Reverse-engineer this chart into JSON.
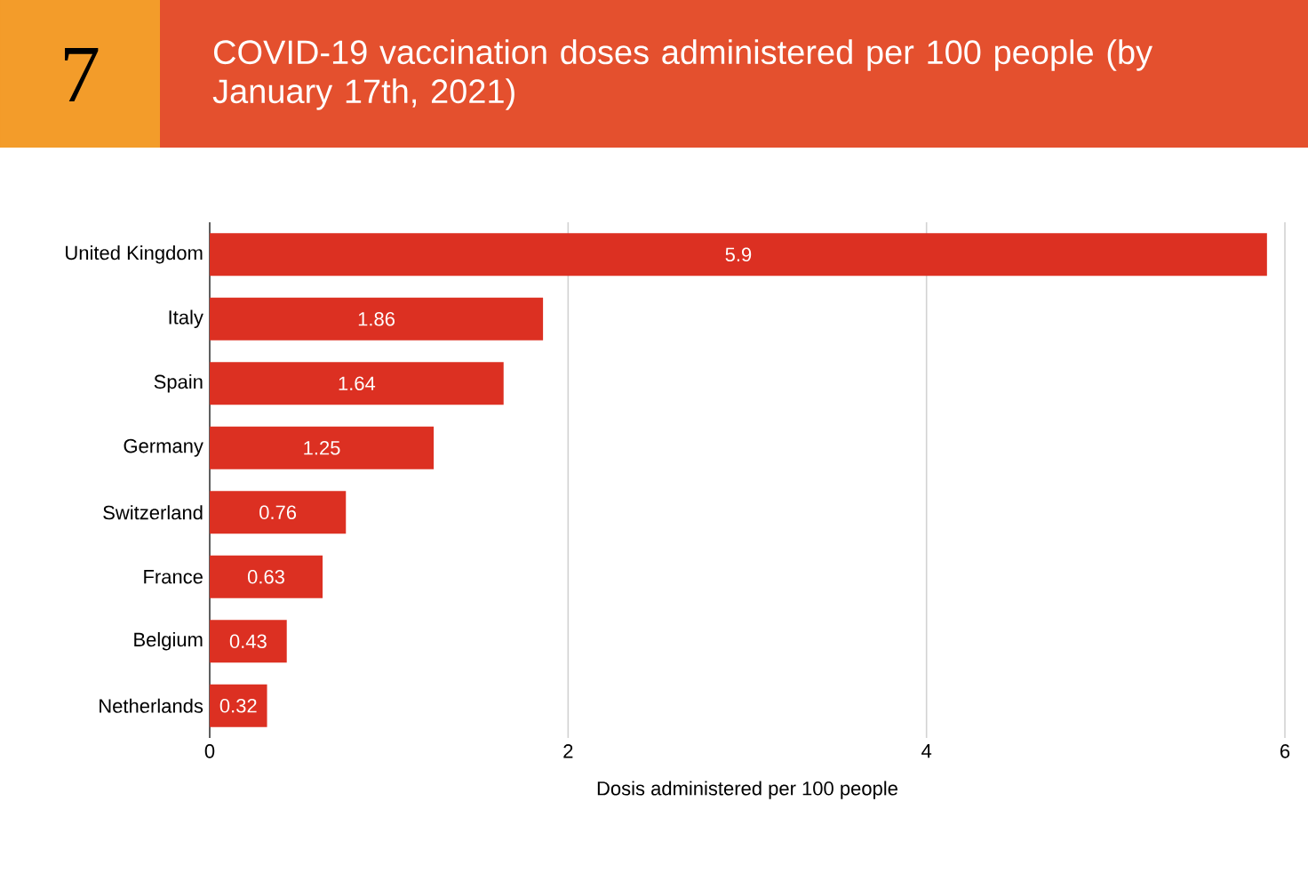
{
  "chart_data": {
    "type": "bar",
    "orientation": "horizontal",
    "title": "COVID-19 vaccination doses administered per 100 people (by January 17th, 2021)",
    "annotations": [
      "7"
    ],
    "xlabel": "Dosis administered per 100 people",
    "categories": [
      "United Kingdom",
      "Italy",
      "Spain",
      "Germany",
      "Switzerland",
      "France",
      "Belgium",
      "Netherlands"
    ],
    "values": [
      5.9,
      1.86,
      1.64,
      1.25,
      0.76,
      0.63,
      0.43,
      0.32
    ],
    "color": "#dc3022",
    "xlim": [
      0,
      6
    ],
    "xticks": [
      0,
      2,
      4,
      6
    ],
    "grid": "x",
    "data_labels": true
  }
}
